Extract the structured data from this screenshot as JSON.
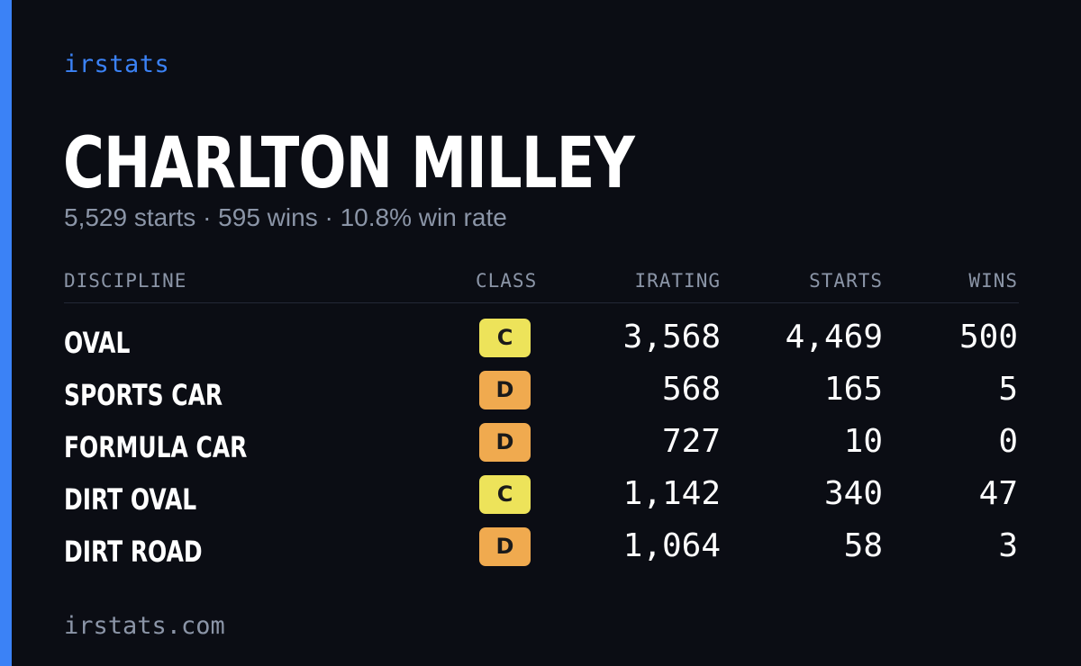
{
  "brand": "irstats",
  "driver": {
    "name": "CHARLTON MILLEY",
    "summary": "5,529 starts · 595 wins · 10.8% win rate"
  },
  "colors": {
    "accent": "#3b82f6",
    "background": "#0b0d14",
    "class_c": "#ede35a",
    "class_d": "#f0aa4f",
    "muted": "#8b95a7"
  },
  "table": {
    "headers": {
      "discipline": "DISCIPLINE",
      "class": "CLASS",
      "irating": "IRATING",
      "starts": "STARTS",
      "wins": "WINS"
    },
    "rows": [
      {
        "discipline": "OVAL",
        "class": "C",
        "irating": "3,568",
        "starts": "4,469",
        "wins": "500"
      },
      {
        "discipline": "SPORTS CAR",
        "class": "D",
        "irating": "568",
        "starts": "165",
        "wins": "5"
      },
      {
        "discipline": "FORMULA CAR",
        "class": "D",
        "irating": "727",
        "starts": "10",
        "wins": "0"
      },
      {
        "discipline": "DIRT OVAL",
        "class": "C",
        "irating": "1,142",
        "starts": "340",
        "wins": "47"
      },
      {
        "discipline": "DIRT ROAD",
        "class": "D",
        "irating": "1,064",
        "starts": "58",
        "wins": "3"
      }
    ]
  },
  "footer": "irstats.com"
}
